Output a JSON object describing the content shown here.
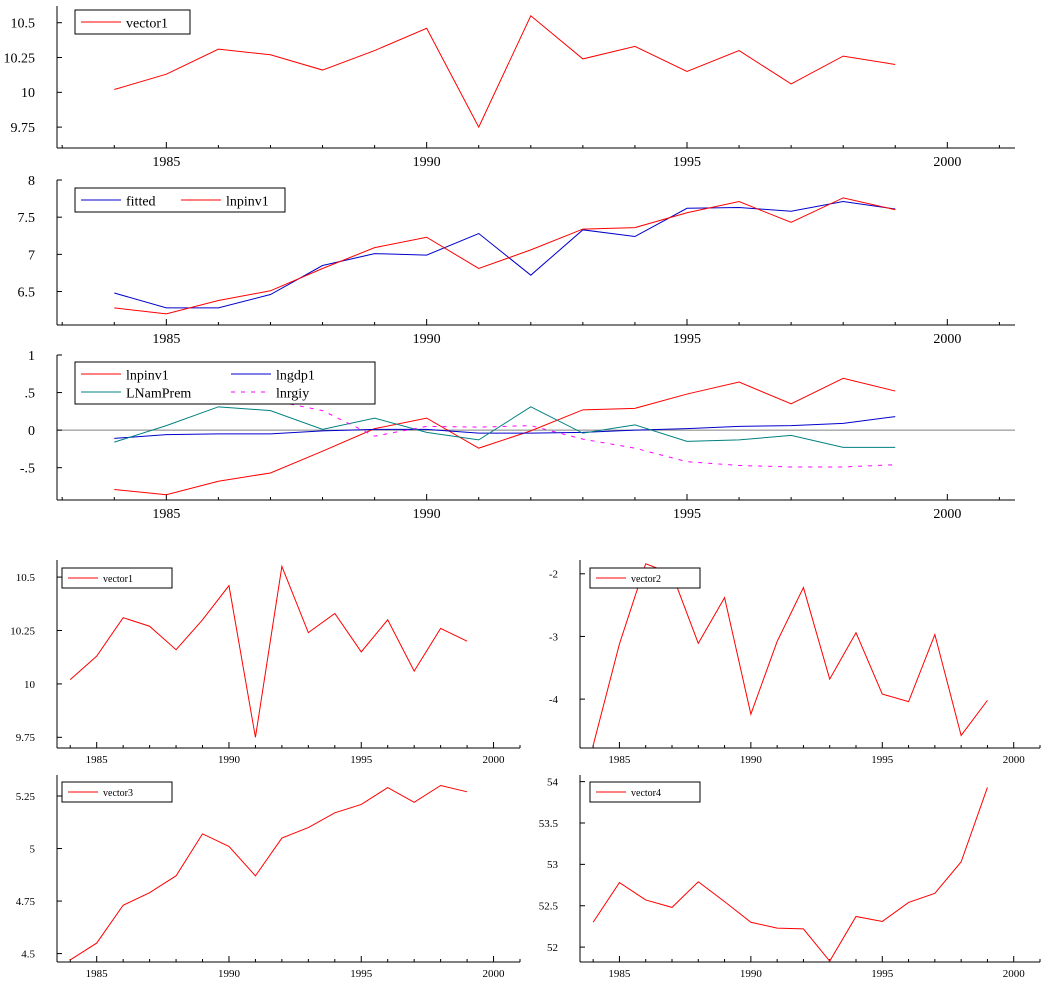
{
  "chart_data": [
    {
      "type": "line",
      "x": [
        1984,
        1985,
        1986,
        1987,
        1988,
        1989,
        1990,
        1991,
        1992,
        1993,
        1994,
        1995,
        1996,
        1997,
        1998,
        1999
      ],
      "xlim": [
        1982.9,
        2001.3
      ],
      "ylim": [
        9.6,
        10.62
      ],
      "xticks": [
        1985,
        1990,
        1995,
        2000
      ],
      "yticks": [
        9.75,
        10,
        10.25,
        10.5
      ],
      "ytick_labels": [
        "9.75",
        "10",
        "10.25",
        "10.5"
      ],
      "legend_cols": 1,
      "legend_position": "top-left",
      "grid": false,
      "series": [
        {
          "name": "vector1",
          "color": "#ff0000",
          "style": "solid",
          "values": [
            10.02,
            10.13,
            10.31,
            10.27,
            10.16,
            10.3,
            10.46,
            9.75,
            10.55,
            10.24,
            10.33,
            10.15,
            10.3,
            10.06,
            10.26,
            10.2
          ]
        }
      ]
    },
    {
      "type": "line",
      "x": [
        1984,
        1985,
        1986,
        1987,
        1988,
        1989,
        1990,
        1991,
        1992,
        1993,
        1994,
        1995,
        1996,
        1997,
        1998,
        1999
      ],
      "xlim": [
        1982.9,
        2001.3
      ],
      "ylim": [
        6.05,
        8.0
      ],
      "xticks": [
        1985,
        1990,
        1995,
        2000
      ],
      "yticks": [
        6.5,
        7,
        7.5,
        8
      ],
      "ytick_labels": [
        "6.5",
        "7",
        "7.5",
        "8"
      ],
      "legend_cols": 2,
      "legend_position": "top-left",
      "grid": false,
      "series": [
        {
          "name": "fitted",
          "color": "#0000cc",
          "style": "solid",
          "values": [
            6.48,
            6.28,
            6.28,
            6.46,
            6.85,
            7.01,
            6.99,
            7.28,
            6.72,
            7.33,
            7.24,
            7.62,
            7.63,
            7.58,
            7.71,
            7.61
          ]
        },
        {
          "name": "lnpinv1",
          "color": "#ff0000",
          "style": "solid",
          "values": [
            6.28,
            6.2,
            6.38,
            6.51,
            6.81,
            7.09,
            7.23,
            6.81,
            7.06,
            7.34,
            7.36,
            7.56,
            7.71,
            7.43,
            7.76,
            7.6
          ]
        }
      ]
    },
    {
      "type": "line",
      "x": [
        1984,
        1985,
        1986,
        1987,
        1988,
        1989,
        1990,
        1991,
        1992,
        1993,
        1994,
        1995,
        1996,
        1997,
        1998,
        1999
      ],
      "xlim": [
        1982.9,
        2001.3
      ],
      "ylim": [
        -0.93,
        1.0
      ],
      "xticks": [
        1985,
        1990,
        1995,
        2000
      ],
      "yticks": [
        -0.5,
        0,
        0.5,
        1
      ],
      "ytick_labels": [
        "-.5",
        "0",
        ".5",
        "1"
      ],
      "zero_line": true,
      "legend_cols": 2,
      "legend_position": "top-left",
      "grid": false,
      "series": [
        {
          "name": "lnpinv1",
          "color": "#ff0000",
          "style": "solid",
          "values": [
            -0.79,
            -0.86,
            -0.68,
            -0.57,
            -0.28,
            0.02,
            0.16,
            -0.24,
            -0.01,
            0.27,
            0.29,
            0.48,
            0.64,
            0.35,
            0.69,
            0.52
          ]
        },
        {
          "name": "lngdp1",
          "color": "#0000cc",
          "style": "solid",
          "values": [
            -0.11,
            -0.06,
            -0.05,
            -0.05,
            -0.01,
            0.01,
            0.01,
            -0.04,
            -0.04,
            -0.03,
            0.0,
            0.02,
            0.05,
            0.06,
            0.09,
            0.18
          ]
        },
        {
          "name": "LNamPrem",
          "color": "#008080",
          "style": "solid",
          "values": [
            -0.16,
            0.06,
            0.31,
            0.26,
            0.01,
            0.16,
            -0.03,
            -0.13,
            0.31,
            -0.04,
            0.07,
            -0.15,
            -0.13,
            -0.07,
            -0.23,
            -0.23
          ]
        },
        {
          "name": "lnrgiy",
          "color": "#ff00ff",
          "style": "dashed",
          "values": [
            0.85,
            0.74,
            0.6,
            0.4,
            0.26,
            -0.08,
            0.05,
            0.04,
            0.06,
            -0.12,
            -0.24,
            -0.42,
            -0.47,
            -0.49,
            -0.49,
            -0.46
          ]
        }
      ]
    },
    {
      "type": "line",
      "x": [
        1984,
        1985,
        1986,
        1987,
        1988,
        1989,
        1990,
        1991,
        1992,
        1993,
        1994,
        1995,
        1996,
        1997,
        1998,
        1999
      ],
      "xlim": [
        1983.5,
        2001.0
      ],
      "ylim": [
        9.7,
        10.58
      ],
      "xticks": [
        1985,
        1990,
        1995,
        2000
      ],
      "yticks": [
        9.75,
        10,
        10.25,
        10.5
      ],
      "ytick_labels": [
        "9.75",
        "10",
        "10.25",
        "10.5"
      ],
      "legend_cols": 1,
      "legend_position": "top-left",
      "grid": false,
      "series": [
        {
          "name": "vector1",
          "color": "#ff0000",
          "style": "solid",
          "values": [
            10.02,
            10.13,
            10.31,
            10.27,
            10.16,
            10.3,
            10.46,
            9.75,
            10.55,
            10.24,
            10.33,
            10.15,
            10.3,
            10.06,
            10.26,
            10.2
          ]
        }
      ]
    },
    {
      "type": "line",
      "x": [
        1984,
        1985,
        1986,
        1987,
        1988,
        1989,
        1990,
        1991,
        1992,
        1993,
        1994,
        1995,
        1996,
        1997,
        1998,
        1999
      ],
      "xlim": [
        1983.5,
        2001.0
      ],
      "ylim": [
        -4.78,
        -1.78
      ],
      "xticks": [
        1985,
        1990,
        1995,
        2000
      ],
      "yticks": [
        -4,
        -3,
        -2
      ],
      "ytick_labels": [
        "-4",
        "-3",
        "-2"
      ],
      "legend_cols": 1,
      "legend_position": "top-left",
      "grid": false,
      "series": [
        {
          "name": "vector2",
          "color": "#ff0000",
          "style": "solid",
          "values": [
            -4.74,
            -3.12,
            -1.84,
            -2.0,
            -3.11,
            -2.38,
            -4.24,
            -3.08,
            -2.22,
            -3.68,
            -2.94,
            -3.92,
            -4.04,
            -2.97,
            -4.58,
            -4.02
          ]
        }
      ]
    },
    {
      "type": "line",
      "x": [
        1984,
        1985,
        1986,
        1987,
        1988,
        1989,
        1990,
        1991,
        1992,
        1993,
        1994,
        1995,
        1996,
        1997,
        1998,
        1999
      ],
      "xlim": [
        1983.5,
        2001.0
      ],
      "ylim": [
        4.46,
        5.35
      ],
      "xticks": [
        1985,
        1990,
        1995,
        2000
      ],
      "yticks": [
        4.5,
        4.75,
        5,
        5.25
      ],
      "ytick_labels": [
        "4.5",
        "4.75",
        "5",
        "5.25"
      ],
      "legend_cols": 1,
      "legend_position": "top-left",
      "grid": false,
      "series": [
        {
          "name": "vector3",
          "color": "#ff0000",
          "style": "solid",
          "values": [
            4.47,
            4.55,
            4.73,
            4.79,
            4.87,
            5.07,
            5.01,
            4.87,
            5.05,
            5.1,
            5.17,
            5.21,
            5.29,
            5.22,
            5.3,
            5.27
          ]
        }
      ]
    },
    {
      "type": "line",
      "x": [
        1984,
        1985,
        1986,
        1987,
        1988,
        1989,
        1990,
        1991,
        1992,
        1993,
        1994,
        1995,
        1996,
        1997,
        1998,
        1999
      ],
      "xlim": [
        1983.5,
        2001.0
      ],
      "ylim": [
        51.82,
        54.08
      ],
      "xticks": [
        1985,
        1990,
        1995,
        2000
      ],
      "yticks": [
        52,
        52.5,
        53,
        53.5,
        54
      ],
      "ytick_labels": [
        "52",
        "52.5",
        "53",
        "53.5",
        "54"
      ],
      "legend_cols": 1,
      "legend_position": "top-left",
      "grid": false,
      "series": [
        {
          "name": "vector4",
          "color": "#ff0000",
          "style": "solid",
          "values": [
            52.3,
            52.78,
            52.57,
            52.48,
            52.79,
            52.55,
            52.3,
            52.23,
            52.22,
            51.83,
            52.37,
            52.31,
            52.54,
            52.65,
            53.03,
            53.93
          ]
        }
      ]
    }
  ]
}
